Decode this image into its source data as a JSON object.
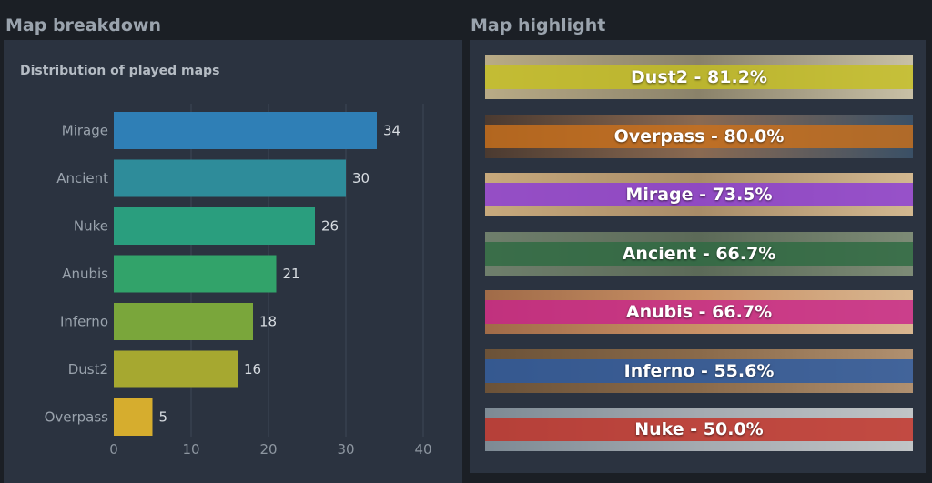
{
  "left_section": {
    "title": "Map breakdown"
  },
  "right_section": {
    "title": "Map highlight"
  },
  "chart_data": {
    "type": "bar",
    "orientation": "horizontal",
    "title": "Distribution of played maps",
    "categories": [
      "Mirage",
      "Ancient",
      "Nuke",
      "Anubis",
      "Inferno",
      "Dust2",
      "Overpass"
    ],
    "values": [
      34,
      30,
      26,
      21,
      18,
      16,
      5
    ],
    "colors": [
      "#2f7fb6",
      "#2e8c9a",
      "#2a9e7e",
      "#32a36a",
      "#7aa63b",
      "#a6a830",
      "#d6ad2e"
    ],
    "xlim": [
      0,
      40
    ],
    "xticks": [
      0,
      10,
      20,
      30,
      40
    ],
    "grid": true,
    "data_labels": true
  },
  "highlights": [
    {
      "label": "Dust2 - 81.2%",
      "band_color": "#c6c022",
      "bg": [
        "#b9ab86",
        "#8a826a",
        "#c8c0a6"
      ]
    },
    {
      "label": "Overpass - 80.0%",
      "band_color": "#c9701c",
      "bg": [
        "#4b3a30",
        "#8a6a52",
        "#3a5066"
      ]
    },
    {
      "label": "Mirage - 73.5%",
      "band_color": "#8a3ad6",
      "bg": [
        "#c7a97c",
        "#a88c68",
        "#d2b890"
      ]
    },
    {
      "label": "Ancient - 66.7%",
      "band_color": "#2e6a42",
      "bg": [
        "#6f7f6c",
        "#5c6a58",
        "#7d8b76"
      ]
    },
    {
      "label": "Anubis - 66.7%",
      "band_color": "#c8248a",
      "bg": [
        "#a06b48",
        "#c99166",
        "#d8b690"
      ]
    },
    {
      "label": "Inferno - 55.6%",
      "band_color": "#2a5aa4",
      "bg": [
        "#6b5238",
        "#8a6a4a",
        "#b09070"
      ]
    },
    {
      "label": "Nuke - 50.0%",
      "band_color": "#c23024",
      "bg": [
        "#7d8a94",
        "#a4aab0",
        "#c0c4c6"
      ]
    }
  ]
}
